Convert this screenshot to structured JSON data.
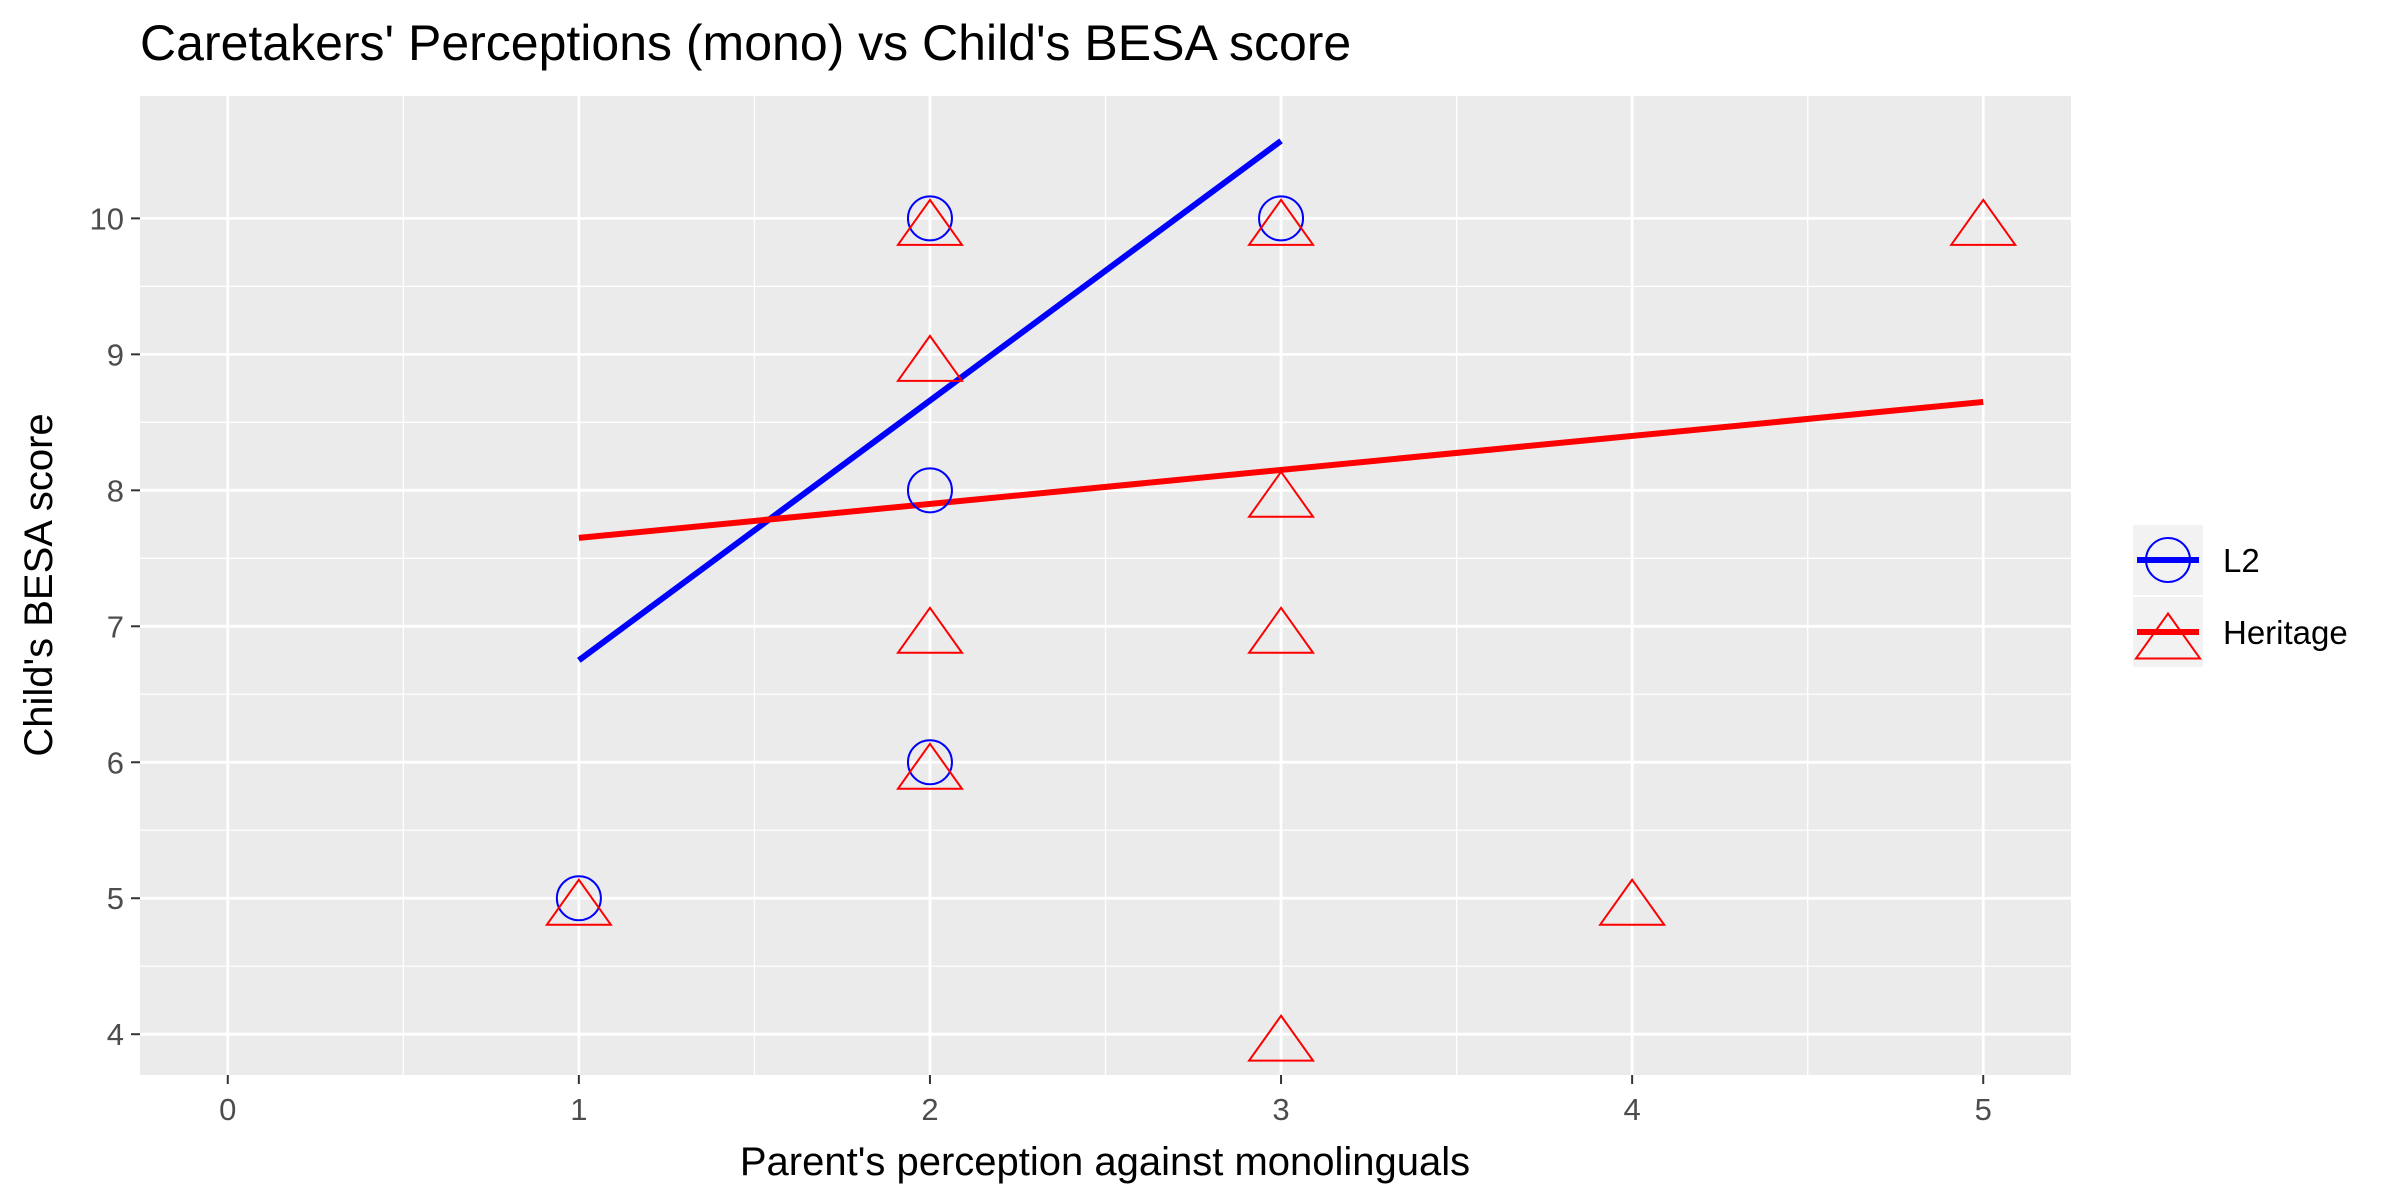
{
  "chart_data": {
    "type": "scatter",
    "title": "Caretakers' Perceptions (mono) vs Child's BESA score",
    "xlabel": "Parent's perception against monolinguals",
    "ylabel": "Child's BESA score",
    "xlim": [
      -0.25,
      5.25
    ],
    "ylim": [
      3.7,
      10.9
    ],
    "x_ticks": [
      0,
      1,
      2,
      3,
      4,
      5
    ],
    "y_ticks": [
      4,
      5,
      6,
      7,
      8,
      9,
      10
    ],
    "grid": true,
    "panel_background": "#ebebeb",
    "legend_position": "right",
    "series": [
      {
        "name": "L2",
        "color": "#0000ff",
        "marker": "open-circle",
        "points": [
          {
            "x": 1,
            "y": 5
          },
          {
            "x": 2,
            "y": 6
          },
          {
            "x": 2,
            "y": 8
          },
          {
            "x": 2,
            "y": 10
          },
          {
            "x": 3,
            "y": 10
          }
        ],
        "fit_line": {
          "x": [
            1,
            3
          ],
          "y": [
            6.75,
            10.57
          ]
        }
      },
      {
        "name": "Heritage",
        "color": "#ff0000",
        "marker": "open-triangle",
        "points": [
          {
            "x": 1,
            "y": 5
          },
          {
            "x": 2,
            "y": 6
          },
          {
            "x": 2,
            "y": 7
          },
          {
            "x": 2,
            "y": 9
          },
          {
            "x": 2,
            "y": 10
          },
          {
            "x": 3,
            "y": 4
          },
          {
            "x": 3,
            "y": 7
          },
          {
            "x": 3,
            "y": 8
          },
          {
            "x": 3,
            "y": 10
          },
          {
            "x": 4,
            "y": 5
          },
          {
            "x": 5,
            "y": 10
          }
        ],
        "fit_line": {
          "x": [
            1,
            5
          ],
          "y": [
            7.65,
            8.65
          ]
        }
      }
    ]
  }
}
